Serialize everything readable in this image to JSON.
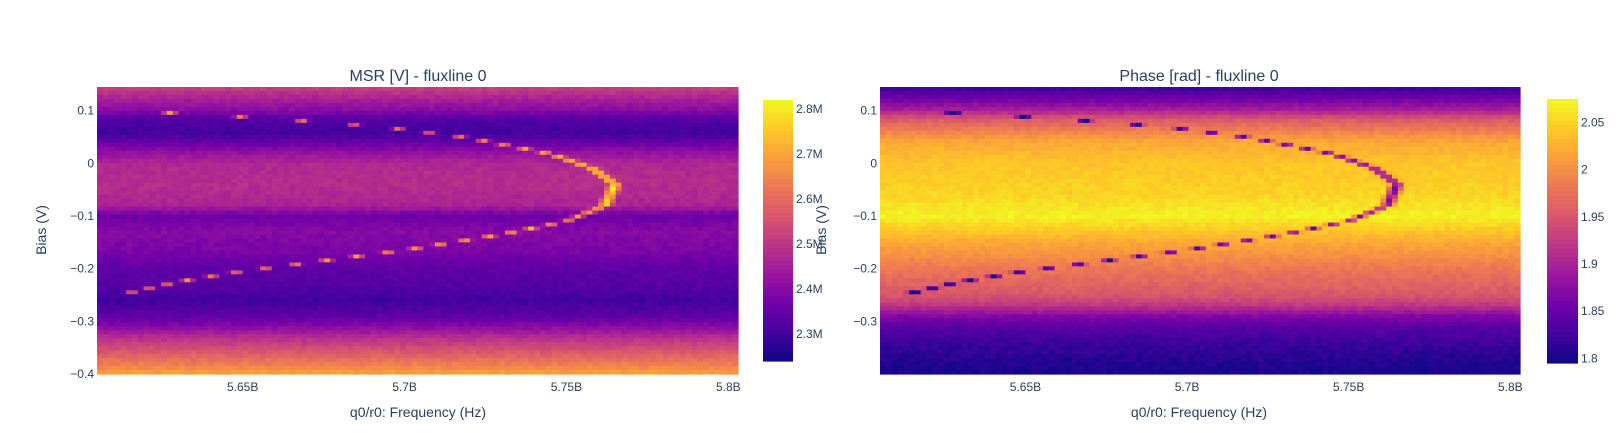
{
  "chart_data": [
    {
      "type": "heatmap",
      "title": "MSR [V] - fluxline 0",
      "xlabel": "q0/r0: Frequency (Hz)",
      "ylabel": "Bias (V)",
      "xlim": [
        5605000000.0,
        5803000000.0
      ],
      "ylim": [
        -0.4,
        0.145
      ],
      "x_ticks": [
        5650000000.0,
        5700000000.0,
        5750000000.0,
        5800000000.0
      ],
      "x_tick_labels": [
        "5.65B",
        "5.7B",
        "5.75B",
        "5.8B"
      ],
      "y_ticks": [
        0.1,
        0,
        -0.1,
        -0.2,
        -0.3,
        -0.4
      ],
      "y_tick_labels": [
        "0.1",
        "0",
        "−0.1",
        "−0.2",
        "−0.3",
        "−0.4"
      ],
      "colorscale": "Plasma",
      "zlim": [
        2240000.0,
        2820000.0
      ],
      "colorbar_ticks": [
        2300000.0,
        2400000.0,
        2500000.0,
        2600000.0,
        2700000.0,
        2800000.0
      ],
      "colorbar_tick_labels": [
        "2.3M",
        "2.4M",
        "2.5M",
        "2.6M",
        "2.7M",
        "2.8M"
      ],
      "bias_profile": [
        [
          0.145,
          2520000.0
        ],
        [
          0.12,
          2450000.0
        ],
        [
          0.1,
          2400000.0
        ],
        [
          0.085,
          2330000.0
        ],
        [
          0.06,
          2300000.0
        ],
        [
          0.04,
          2350000.0
        ],
        [
          0.02,
          2420000.0
        ],
        [
          0.0,
          2470000.0
        ],
        [
          -0.04,
          2480000.0
        ],
        [
          -0.08,
          2460000.0
        ],
        [
          -0.1,
          2360000.0
        ],
        [
          -0.13,
          2400000.0
        ],
        [
          -0.17,
          2380000.0
        ],
        [
          -0.2,
          2340000.0
        ],
        [
          -0.23,
          2330000.0
        ],
        [
          -0.26,
          2300000.0
        ],
        [
          -0.29,
          2340000.0
        ],
        [
          -0.31,
          2400000.0
        ],
        [
          -0.33,
          2480000.0
        ],
        [
          -0.35,
          2540000.0
        ],
        [
          -0.37,
          2600000.0
        ],
        [
          -0.39,
          2660000.0
        ],
        [
          -0.4,
          2700000.0
        ]
      ],
      "resonance_shift": 330000.0,
      "resonance": [
        [
          5615000000.0,
          0.1
        ],
        [
          5645000000.0,
          0.09
        ],
        [
          5670000000.0,
          0.08
        ],
        [
          5695000000.0,
          0.068
        ],
        [
          5720000000.0,
          0.048
        ],
        [
          5745000000.0,
          0.018
        ],
        [
          5758000000.0,
          -0.01
        ],
        [
          5765000000.0,
          -0.04
        ],
        [
          5762000000.0,
          -0.08
        ],
        [
          5750000000.0,
          -0.11
        ],
        [
          5730000000.0,
          -0.135
        ],
        [
          5700000000.0,
          -0.165
        ],
        [
          5675000000.0,
          -0.185
        ],
        [
          5650000000.0,
          -0.205
        ],
        [
          5630000000.0,
          -0.225
        ],
        [
          5612000000.0,
          -0.25
        ]
      ]
    },
    {
      "type": "heatmap",
      "title": "Phase [rad] - fluxline 0",
      "xlabel": "q0/r0: Frequency (Hz)",
      "ylabel": "Bias (V)",
      "xlim": [
        5605000000.0,
        5803000000.0
      ],
      "ylim": [
        -0.4,
        0.145
      ],
      "x_ticks": [
        5650000000.0,
        5700000000.0,
        5750000000.0,
        5800000000.0
      ],
      "x_tick_labels": [
        "5.65B",
        "5.7B",
        "5.75B",
        "5.8B"
      ],
      "y_ticks": [
        0.1,
        0,
        -0.1,
        -0.2,
        -0.3
      ],
      "y_tick_labels": [
        "0.1",
        "0",
        "−0.1",
        "−0.2",
        "−0.3"
      ],
      "colorscale": "Plasma",
      "zlim": [
        1.795,
        2.075
      ],
      "colorbar_ticks": [
        1.8,
        1.85,
        1.9,
        1.95,
        2.0,
        2.05
      ],
      "colorbar_tick_labels": [
        "1.8",
        "1.85",
        "1.9",
        "1.95",
        "2",
        "2.05"
      ],
      "bias_profile": [
        [
          0.145,
          1.82
        ],
        [
          0.12,
          1.86
        ],
        [
          0.1,
          1.9
        ],
        [
          0.085,
          1.95
        ],
        [
          0.06,
          1.99
        ],
        [
          0.04,
          2.02
        ],
        [
          0.0,
          2.04
        ],
        [
          -0.06,
          2.05
        ],
        [
          -0.1,
          2.07
        ],
        [
          -0.12,
          2.05
        ],
        [
          -0.15,
          2.02
        ],
        [
          -0.2,
          1.98
        ],
        [
          -0.25,
          1.95
        ],
        [
          -0.27,
          1.92
        ],
        [
          -0.29,
          1.87
        ],
        [
          -0.31,
          1.84
        ],
        [
          -0.34,
          1.82
        ],
        [
          -0.37,
          1.81
        ],
        [
          -0.4,
          1.8
        ]
      ],
      "resonance_shift": -0.2,
      "resonance": [
        [
          5615000000.0,
          0.1
        ],
        [
          5645000000.0,
          0.09
        ],
        [
          5670000000.0,
          0.08
        ],
        [
          5695000000.0,
          0.068
        ],
        [
          5720000000.0,
          0.048
        ],
        [
          5745000000.0,
          0.018
        ],
        [
          5758000000.0,
          -0.01
        ],
        [
          5765000000.0,
          -0.04
        ],
        [
          5762000000.0,
          -0.08
        ],
        [
          5750000000.0,
          -0.11
        ],
        [
          5730000000.0,
          -0.135
        ],
        [
          5700000000.0,
          -0.165
        ],
        [
          5675000000.0,
          -0.185
        ],
        [
          5650000000.0,
          -0.205
        ],
        [
          5630000000.0,
          -0.225
        ],
        [
          5612000000.0,
          -0.25
        ]
      ]
    }
  ]
}
